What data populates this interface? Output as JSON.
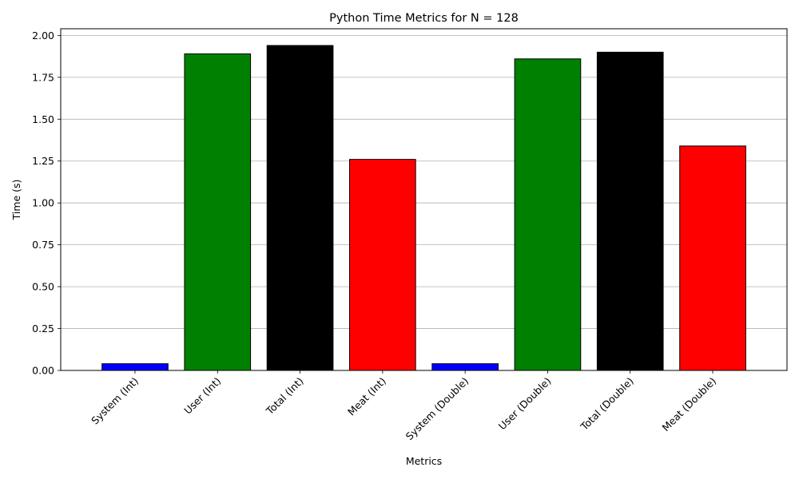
{
  "chart_data": {
    "type": "bar",
    "title": "Python Time Metrics for N = 128",
    "xlabel": "Metrics",
    "ylabel": "Time (s)",
    "categories": [
      "System (Int)",
      "User (Int)",
      "Total (Int)",
      "Meat (Int)",
      "System (Double)",
      "User (Double)",
      "Total (Double)",
      "Meat (Double)"
    ],
    "values": [
      0.04,
      1.89,
      1.94,
      1.26,
      0.04,
      1.86,
      1.9,
      1.34
    ],
    "bar_colors": [
      "#0000ff",
      "#008000",
      "#000000",
      "#ff0000",
      "#0000ff",
      "#008000",
      "#000000",
      "#ff0000"
    ],
    "edge_color": "#000000",
    "ylim": [
      0,
      2.04
    ],
    "yticks": [
      "0.00",
      "0.25",
      "0.50",
      "0.75",
      "1.00",
      "1.25",
      "1.50",
      "1.75",
      "2.00"
    ],
    "grid": "y-axis major",
    "legend": "none",
    "xtick_rotation_deg": 45
  }
}
